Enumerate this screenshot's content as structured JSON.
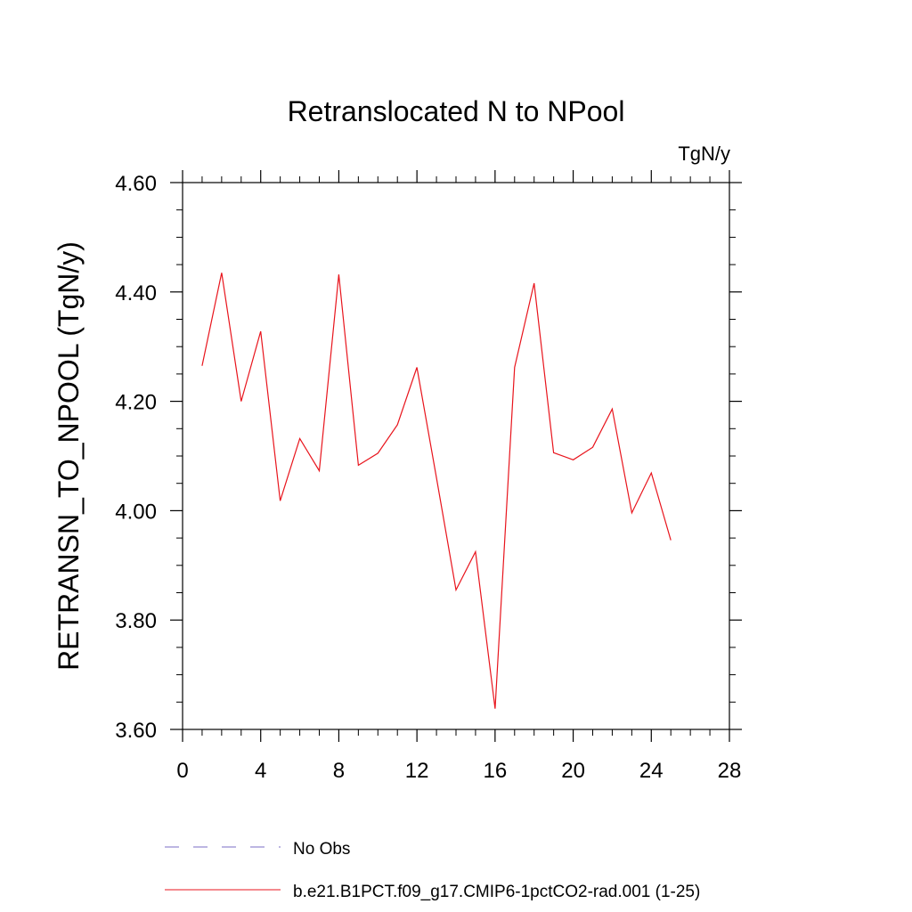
{
  "chart_data": {
    "type": "line",
    "title": "Retranslocated N to NPool",
    "units": "TgN/y",
    "ylabel": "RETRANSN_TO_NPOOL  (TgN/y)",
    "xlabel": "",
    "xlim": [
      0,
      28
    ],
    "ylim": [
      3.6,
      4.6
    ],
    "x_ticks": [
      0,
      4,
      8,
      12,
      16,
      20,
      24,
      28
    ],
    "y_ticks": [
      "3.60",
      "3.80",
      "4.00",
      "4.20",
      "4.40",
      "4.60"
    ],
    "grid": false,
    "legend_position": "bottom",
    "series": [
      {
        "name": "No Obs",
        "color": "#7b6cc4",
        "style": "dashed",
        "x": [],
        "y": []
      },
      {
        "name": "b.e21.B1PCT.f09_g17.CMIP6-1pctCO2-rad.001 (1-25)",
        "color": "#e8141c",
        "style": "solid",
        "x": [
          1,
          2,
          3,
          4,
          5,
          6,
          7,
          8,
          9,
          10,
          11,
          12,
          13,
          14,
          15,
          16,
          17,
          18,
          19,
          20,
          21,
          22,
          23,
          24,
          25
        ],
        "y": [
          4.265,
          4.435,
          4.2,
          4.328,
          4.018,
          4.132,
          4.073,
          4.432,
          4.083,
          4.105,
          4.157,
          4.262,
          4.06,
          3.855,
          3.925,
          3.638,
          4.262,
          4.416,
          4.106,
          4.093,
          4.116,
          4.186,
          3.996,
          4.069,
          3.946
        ]
      }
    ]
  }
}
